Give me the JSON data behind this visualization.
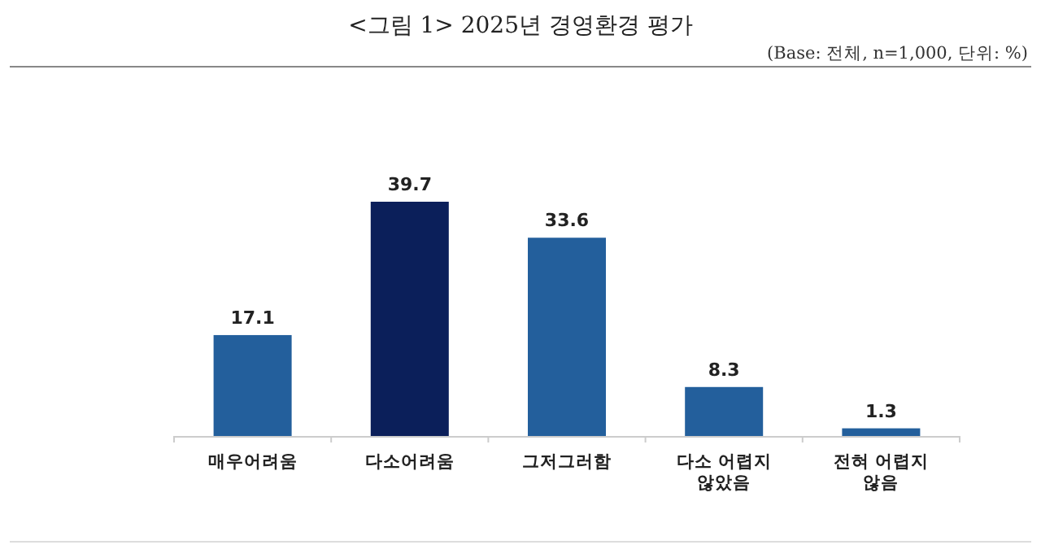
{
  "chart_data": {
    "type": "bar",
    "title": "<그림 1> 2025년 경영환경 평가",
    "subtitle": "(Base: 전체, n=1,000, 단위: %)",
    "categories": [
      "매우어려움",
      "다소어려움",
      "그저그러함",
      "다소 어렵지 않았음",
      "전혀 어렵지 않음"
    ],
    "values": [
      17.1,
      39.7,
      33.6,
      8.3,
      1.3
    ],
    "colors": [
      "#235f9c",
      "#0b1f5a",
      "#235f9c",
      "#235f9c",
      "#235f9c"
    ],
    "data_labels": true
  }
}
